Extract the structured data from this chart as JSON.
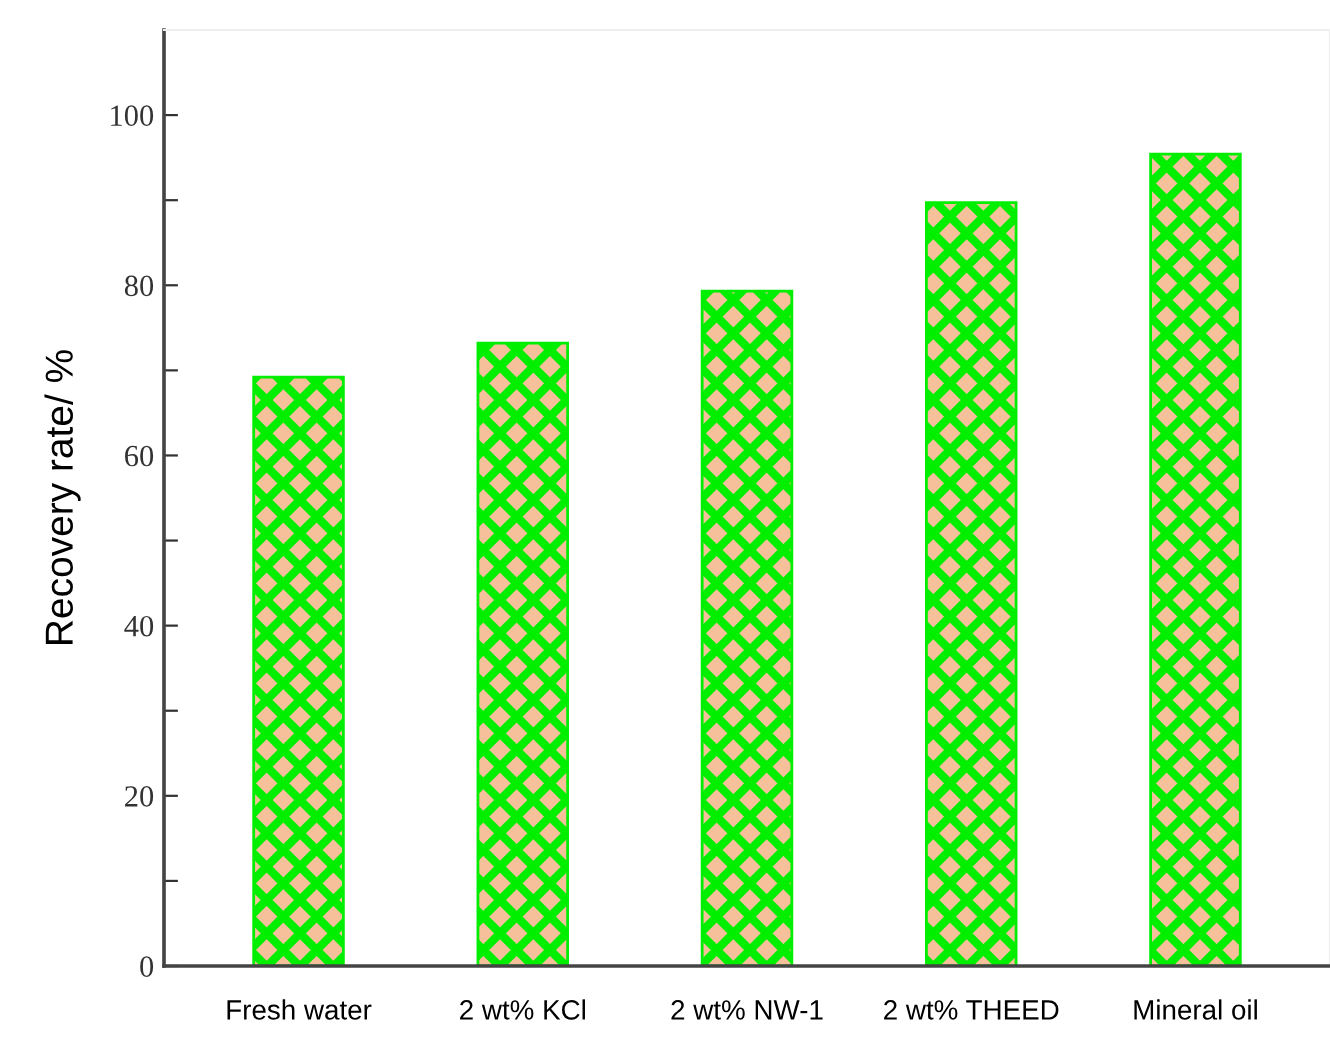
{
  "chart_data": {
    "type": "bar",
    "ylabel": "Recovery rate/ %",
    "categories": [
      "Fresh water",
      "2 wt% KCl",
      "2 wt% NW-1",
      "2 wt% THEED",
      "Mineral oil"
    ],
    "values": [
      69.2,
      73.2,
      79.3,
      89.7,
      95.4
    ],
    "color": "#00ee00",
    "ylim": [
      0,
      110
    ],
    "yticks": [
      0,
      {
        "value": 10,
        "label": null
      },
      20,
      {
        "value": 30,
        "label": null
      },
      40,
      {
        "value": 50,
        "label": null
      },
      60,
      {
        "value": 70,
        "label": null
      },
      80,
      {
        "value": 90,
        "label": null
      },
      100
    ],
    "grid": false
  }
}
